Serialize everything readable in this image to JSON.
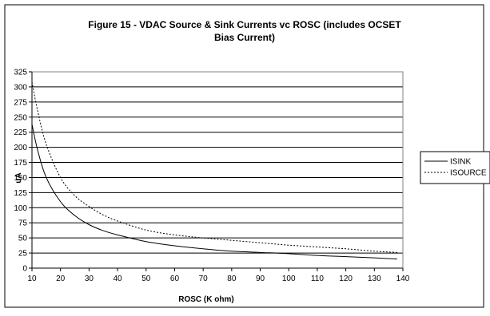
{
  "chart_data": {
    "type": "line",
    "title_line1": "Figure 15 - VDAC Source & Sink Currents vc ROSC (includes OCSET",
    "title_line2": "Bias Current)",
    "xlabel": "ROSC (K ohm)",
    "ylabel": "uA",
    "xlim": [
      10,
      140
    ],
    "ylim": [
      0,
      325
    ],
    "x_ticks": [
      10,
      20,
      30,
      40,
      50,
      60,
      70,
      80,
      90,
      100,
      110,
      120,
      130,
      140
    ],
    "y_ticks": [
      0,
      25,
      50,
      75,
      100,
      125,
      150,
      175,
      200,
      225,
      250,
      275,
      300,
      325
    ],
    "grid": "horizontal",
    "legend_position": "right",
    "series": [
      {
        "name": "ISINK",
        "style": "solid",
        "color": "#000000",
        "x": [
          10,
          12,
          15,
          20,
          25,
          30,
          35,
          40,
          50,
          60,
          70,
          80,
          90,
          100,
          110,
          120,
          130,
          138
        ],
        "y": [
          238,
          195,
          150,
          110,
          87,
          72,
          62,
          55,
          44,
          37,
          32,
          28,
          26,
          24,
          21,
          19,
          17,
          15
        ]
      },
      {
        "name": "ISOURCE",
        "style": "dotted",
        "color": "#000000",
        "x": [
          10,
          12,
          15,
          20,
          25,
          30,
          35,
          40,
          50,
          60,
          70,
          80,
          90,
          100,
          110,
          120,
          130,
          138
        ],
        "y": [
          308,
          260,
          205,
          150,
          120,
          102,
          88,
          78,
          63,
          55,
          50,
          46,
          42,
          38,
          35,
          32,
          28,
          26
        ]
      }
    ]
  }
}
